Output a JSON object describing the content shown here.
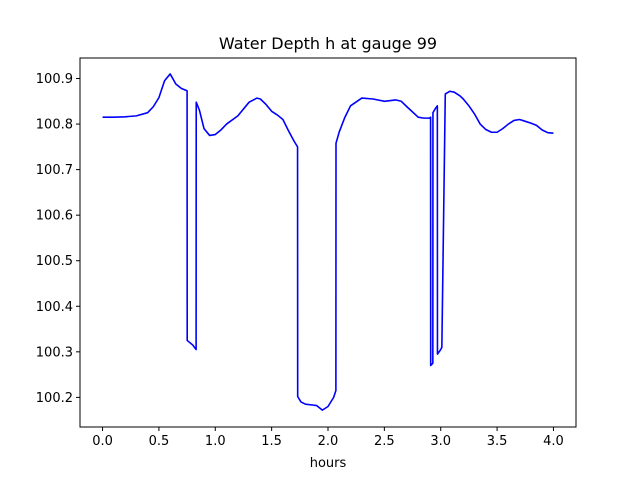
{
  "chart_data": {
    "type": "line",
    "title": "Water Depth h at gauge 99",
    "xlabel": "hours",
    "ylabel": "",
    "xlim": [
      -0.2,
      4.2
    ],
    "ylim": [
      100.135,
      100.945
    ],
    "xticks": [
      0.0,
      0.5,
      1.0,
      1.5,
      2.0,
      2.5,
      3.0,
      3.5,
      4.0
    ],
    "xtick_labels": [
      "0.0",
      "0.5",
      "1.0",
      "1.5",
      "2.0",
      "2.5",
      "3.0",
      "3.5",
      "4.0"
    ],
    "yticks": [
      100.2,
      100.3,
      100.4,
      100.5,
      100.6,
      100.7,
      100.8,
      100.9
    ],
    "ytick_labels": [
      "100.2",
      "100.3",
      "100.4",
      "100.5",
      "100.6",
      "100.7",
      "100.8",
      "100.9"
    ],
    "grid": false,
    "series": [
      {
        "color": "#0000ff",
        "x": [
          0.0,
          0.1,
          0.2,
          0.3,
          0.4,
          0.45,
          0.5,
          0.55,
          0.6,
          0.65,
          0.7,
          0.75,
          0.751,
          0.8,
          0.83,
          0.831,
          0.86,
          0.9,
          0.95,
          1.0,
          1.05,
          1.1,
          1.2,
          1.3,
          1.37,
          1.4,
          1.45,
          1.5,
          1.55,
          1.6,
          1.65,
          1.7,
          1.73,
          1.731,
          1.76,
          1.8,
          1.87,
          1.9,
          1.95,
          2.0,
          2.05,
          2.07,
          2.071,
          2.1,
          2.15,
          2.2,
          2.3,
          2.4,
          2.5,
          2.6,
          2.65,
          2.7,
          2.8,
          2.85,
          2.9,
          2.91,
          2.911,
          2.93,
          2.931,
          2.95,
          2.97,
          2.971,
          3.0,
          3.01,
          3.04,
          3.041,
          3.08,
          3.12,
          3.17,
          3.2,
          3.25,
          3.3,
          3.35,
          3.4,
          3.45,
          3.5,
          3.55,
          3.6,
          3.65,
          3.7,
          3.75,
          3.8,
          3.85,
          3.9,
          3.95,
          4.0
        ],
        "y": [
          100.815,
          100.815,
          100.816,
          100.818,
          100.825,
          100.838,
          100.858,
          100.895,
          100.91,
          100.888,
          100.878,
          100.873,
          100.325,
          100.315,
          100.305,
          100.848,
          100.83,
          100.79,
          100.775,
          100.777,
          100.787,
          100.8,
          100.818,
          100.848,
          100.857,
          100.855,
          100.843,
          100.828,
          100.82,
          100.81,
          100.785,
          100.762,
          100.75,
          100.202,
          100.19,
          100.185,
          100.183,
          100.182,
          100.172,
          100.18,
          100.2,
          100.215,
          100.758,
          100.783,
          100.815,
          100.84,
          100.857,
          100.855,
          100.85,
          100.853,
          100.85,
          100.838,
          100.815,
          100.813,
          100.813,
          100.815,
          100.27,
          100.275,
          100.825,
          100.833,
          100.84,
          100.295,
          100.305,
          100.31,
          100.86,
          100.866,
          100.872,
          100.87,
          100.862,
          100.855,
          100.84,
          100.822,
          100.8,
          100.788,
          100.782,
          100.782,
          100.79,
          100.8,
          100.808,
          100.81,
          100.806,
          100.802,
          100.797,
          100.787,
          100.781,
          100.78
        ]
      }
    ]
  }
}
